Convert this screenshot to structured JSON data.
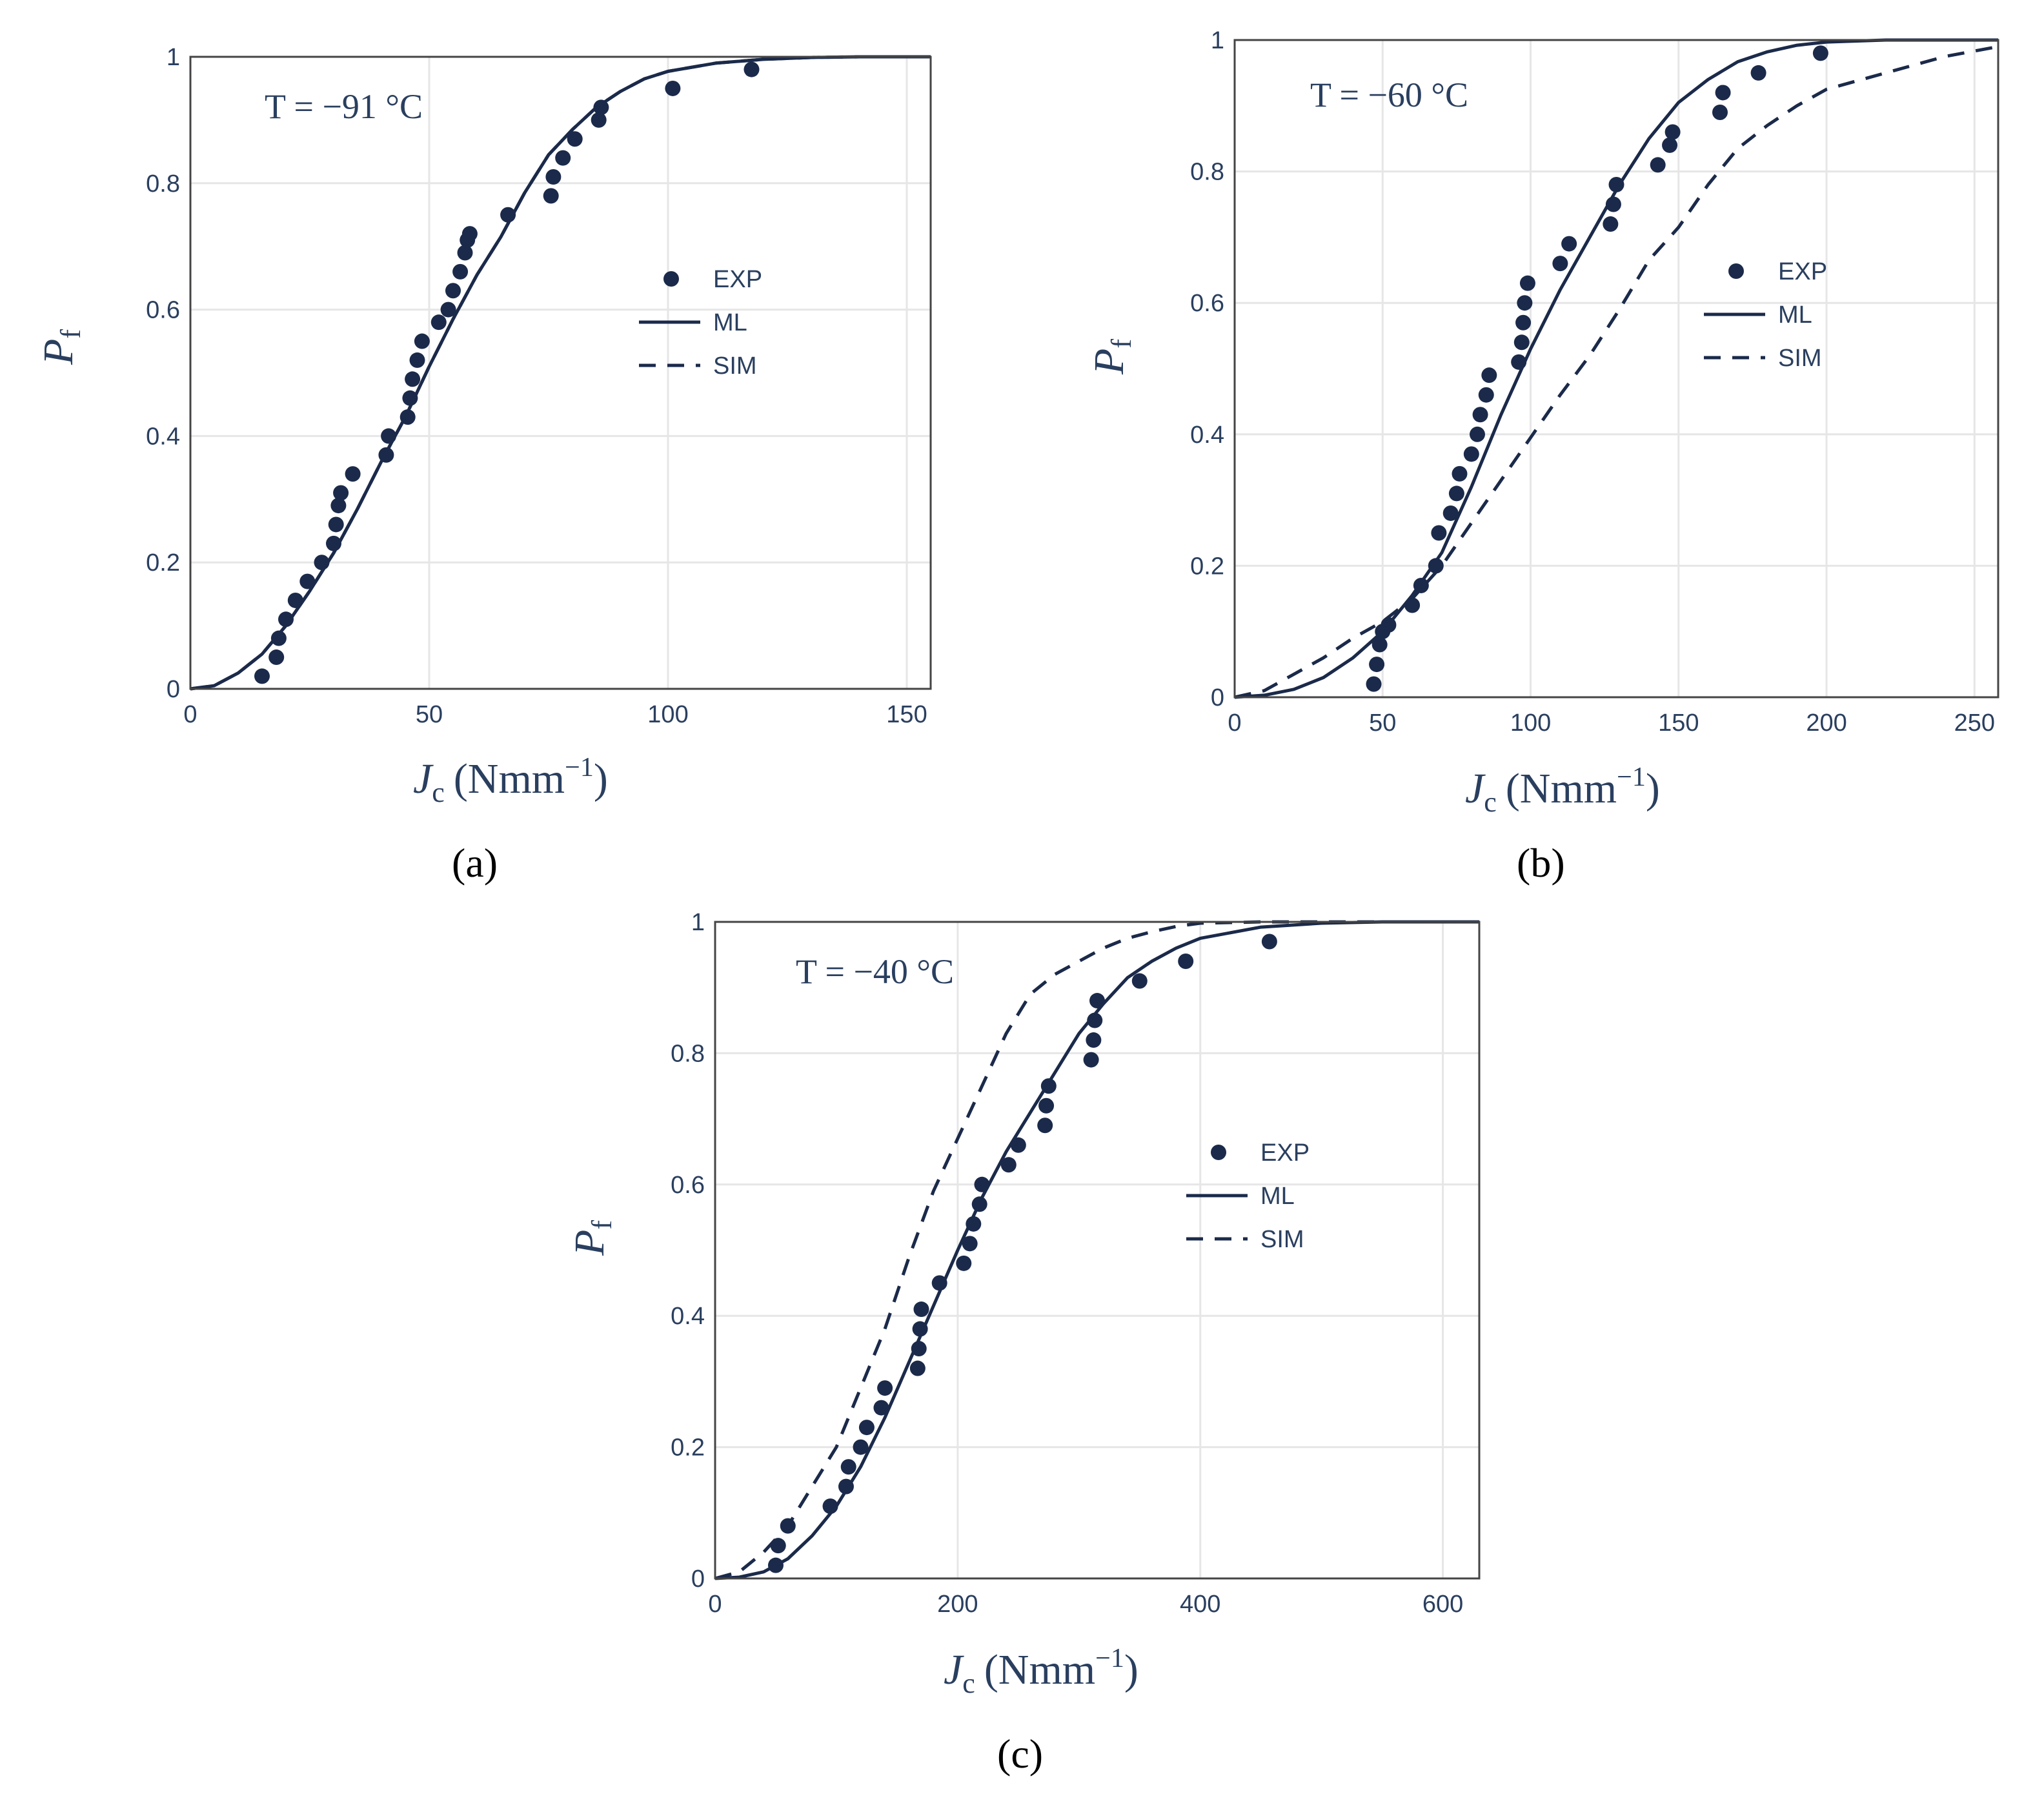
{
  "colors": {
    "series": "#1b2a4a",
    "grid": "#e6e6e6",
    "axis": "#2a3f5f",
    "frame": "#444444"
  },
  "chart_data": [
    {
      "type": "line",
      "panel": "(a)",
      "temperature_label": "T = −91 °C",
      "xlabel": "J",
      "xlabel_sub": "c",
      "xlabel_unit": "(Nmm",
      "xlabel_sup": "−1",
      "xlabel_close": ")",
      "ylabel": "P",
      "ylabel_sub": "f",
      "xlim": [
        0,
        155
      ],
      "ylim": [
        0,
        1
      ],
      "xticks": [
        0,
        50,
        100,
        150
      ],
      "xtick_labels": [
        "0",
        "50",
        "100",
        "150"
      ],
      "yticks": [
        0,
        0.2,
        0.4,
        0.6,
        0.8,
        1
      ],
      "ytick_labels": [
        "0",
        "0.2",
        "0.4",
        "0.6",
        "0.8",
        "1"
      ],
      "legend": [
        "EXP",
        "ML",
        "SIM"
      ],
      "series": [
        {
          "name": "EXP",
          "kind": "scatter",
          "x": [
            15,
            18,
            18.5,
            20,
            22,
            24.5,
            27.5,
            30,
            30.5,
            31,
            31.5,
            34,
            41,
            41.5,
            45.5,
            46,
            46.5,
            47.5,
            48.5,
            52,
            54,
            55,
            56.5,
            57.5,
            58,
            58.5,
            66.5,
            75.5,
            76,
            78,
            80.5,
            85.5,
            86,
            101,
            117.5
          ],
          "y": [
            0.02,
            0.05,
            0.08,
            0.11,
            0.14,
            0.17,
            0.2,
            0.23,
            0.26,
            0.29,
            0.31,
            0.34,
            0.37,
            0.4,
            0.43,
            0.46,
            0.49,
            0.52,
            0.55,
            0.58,
            0.6,
            0.63,
            0.66,
            0.69,
            0.71,
            0.72,
            0.75,
            0.78,
            0.81,
            0.84,
            0.87,
            0.9,
            0.92,
            0.95,
            0.98
          ]
        },
        {
          "name": "ML",
          "kind": "line",
          "x": [
            0,
            5,
            10,
            15,
            20,
            25,
            30,
            35,
            40,
            45,
            50,
            55,
            60,
            65,
            70,
            75,
            80,
            85,
            90,
            95,
            100,
            110,
            120,
            130,
            140,
            155
          ],
          "y": [
            0,
            0.005,
            0.025,
            0.055,
            0.1,
            0.155,
            0.215,
            0.285,
            0.36,
            0.43,
            0.51,
            0.585,
            0.655,
            0.715,
            0.785,
            0.845,
            0.885,
            0.92,
            0.945,
            0.965,
            0.977,
            0.99,
            0.996,
            0.999,
            1,
            1
          ]
        },
        {
          "name": "SIM",
          "kind": "dashed",
          "x": [
            0,
            5,
            10,
            15,
            20,
            25,
            30,
            35,
            40,
            45,
            50,
            55,
            60,
            65,
            70,
            75,
            80,
            85,
            90,
            95,
            100,
            110,
            120,
            130,
            140,
            155
          ],
          "y": [
            0,
            0.005,
            0.025,
            0.055,
            0.1,
            0.155,
            0.215,
            0.285,
            0.36,
            0.43,
            0.51,
            0.585,
            0.655,
            0.715,
            0.785,
            0.845,
            0.885,
            0.92,
            0.945,
            0.965,
            0.977,
            0.99,
            0.996,
            0.999,
            1,
            1
          ]
        }
      ]
    },
    {
      "type": "line",
      "panel": "(b)",
      "temperature_label": "T = −60 °C",
      "xlabel": "J",
      "xlabel_sub": "c",
      "xlabel_unit": "(Nmm",
      "xlabel_sup": "−1",
      "xlabel_close": ")",
      "ylabel": "P",
      "ylabel_sub": "f",
      "xlim": [
        0,
        258
      ],
      "ylim": [
        0,
        1
      ],
      "xticks": [
        0,
        50,
        100,
        150,
        200,
        250
      ],
      "xtick_labels": [
        "0",
        "50",
        "100",
        "150",
        "200",
        "250"
      ],
      "yticks": [
        0,
        0.2,
        0.4,
        0.6,
        0.8,
        1
      ],
      "ytick_labels": [
        "0",
        "0.2",
        "0.4",
        "0.6",
        "0.8",
        "1"
      ],
      "legend": [
        "EXP",
        "ML",
        "SIM"
      ],
      "series": [
        {
          "name": "EXP",
          "kind": "scatter",
          "x": [
            47,
            48,
            49,
            50,
            52,
            60,
            63,
            68,
            69,
            73,
            75,
            76,
            80,
            82,
            83,
            85,
            86,
            96,
            97,
            97.5,
            98,
            99,
            110,
            113,
            127,
            128,
            129,
            143,
            147,
            148,
            164,
            165,
            177,
            198
          ],
          "y": [
            0.02,
            0.05,
            0.08,
            0.1,
            0.11,
            0.14,
            0.17,
            0.2,
            0.25,
            0.28,
            0.31,
            0.34,
            0.37,
            0.4,
            0.43,
            0.46,
            0.49,
            0.51,
            0.54,
            0.57,
            0.6,
            0.63,
            0.66,
            0.69,
            0.72,
            0.75,
            0.78,
            0.81,
            0.84,
            0.86,
            0.89,
            0.92,
            0.95,
            0.98
          ]
        },
        {
          "name": "ML",
          "kind": "line",
          "x": [
            0,
            10,
            20,
            30,
            40,
            50,
            60,
            70,
            80,
            90,
            100,
            110,
            120,
            130,
            140,
            150,
            160,
            170,
            180,
            190,
            200,
            220,
            240,
            258
          ],
          "y": [
            0,
            0.003,
            0.012,
            0.03,
            0.06,
            0.1,
            0.155,
            0.22,
            0.32,
            0.43,
            0.53,
            0.62,
            0.7,
            0.78,
            0.85,
            0.905,
            0.94,
            0.967,
            0.982,
            0.992,
            0.997,
            1,
            1,
            1
          ]
        },
        {
          "name": "SIM",
          "kind": "dashed",
          "x": [
            0,
            10,
            20,
            30,
            40,
            50,
            60,
            70,
            80,
            90,
            100,
            110,
            120,
            130,
            140,
            150,
            160,
            170,
            180,
            190,
            200,
            220,
            240,
            258
          ],
          "y": [
            0,
            0.01,
            0.035,
            0.06,
            0.09,
            0.115,
            0.15,
            0.2,
            0.265,
            0.33,
            0.395,
            0.46,
            0.52,
            0.59,
            0.665,
            0.715,
            0.78,
            0.835,
            0.87,
            0.9,
            0.925,
            0.95,
            0.975,
            0.99
          ]
        }
      ]
    },
    {
      "type": "line",
      "panel": "(c)",
      "temperature_label": "T = −40 °C",
      "xlabel": "J",
      "xlabel_sub": "c",
      "xlabel_unit": "(Nmm",
      "xlabel_sup": "−1",
      "xlabel_close": ")",
      "ylabel": "P",
      "ylabel_sub": "f",
      "xlim": [
        0,
        630
      ],
      "ylim": [
        0,
        1
      ],
      "xticks": [
        0,
        200,
        400,
        600
      ],
      "xtick_labels": [
        "0",
        "200",
        "400",
        "600"
      ],
      "yticks": [
        0,
        0.2,
        0.4,
        0.6,
        0.8,
        1
      ],
      "ytick_labels": [
        "0",
        "0.2",
        "0.4",
        "0.6",
        "0.8",
        "1"
      ],
      "legend": [
        "EXP",
        "ML",
        "SIM"
      ],
      "series": [
        {
          "name": "EXP",
          "kind": "scatter",
          "x": [
            50,
            52,
            60,
            95,
            108,
            110,
            120,
            125,
            137,
            140,
            167,
            168,
            169,
            170,
            185,
            205,
            210,
            213,
            218,
            220,
            242,
            250,
            272,
            273,
            275,
            310,
            312,
            313,
            315,
            350,
            388,
            457
          ],
          "y": [
            0.02,
            0.05,
            0.08,
            0.11,
            0.14,
            0.17,
            0.2,
            0.23,
            0.26,
            0.29,
            0.32,
            0.35,
            0.38,
            0.41,
            0.45,
            0.48,
            0.51,
            0.54,
            0.57,
            0.6,
            0.63,
            0.66,
            0.69,
            0.72,
            0.75,
            0.79,
            0.82,
            0.85,
            0.88,
            0.91,
            0.94,
            0.97
          ]
        },
        {
          "name": "ML",
          "kind": "line",
          "x": [
            0,
            20,
            40,
            60,
            80,
            100,
            120,
            140,
            160,
            180,
            200,
            220,
            240,
            260,
            280,
            300,
            320,
            340,
            360,
            380,
            400,
            450,
            500,
            550,
            630
          ],
          "y": [
            0,
            0.002,
            0.01,
            0.03,
            0.065,
            0.11,
            0.17,
            0.245,
            0.33,
            0.415,
            0.5,
            0.58,
            0.65,
            0.71,
            0.77,
            0.83,
            0.875,
            0.915,
            0.94,
            0.96,
            0.975,
            0.992,
            0.998,
            1,
            1
          ]
        },
        {
          "name": "SIM",
          "kind": "dashed",
          "x": [
            0,
            20,
            40,
            60,
            80,
            100,
            120,
            140,
            160,
            180,
            200,
            220,
            240,
            260,
            280,
            300,
            320,
            340,
            360,
            380,
            400,
            450,
            500,
            550,
            630
          ],
          "y": [
            0,
            0.01,
            0.04,
            0.08,
            0.14,
            0.2,
            0.29,
            0.38,
            0.49,
            0.59,
            0.67,
            0.75,
            0.83,
            0.89,
            0.92,
            0.94,
            0.96,
            0.975,
            0.985,
            0.993,
            0.998,
            1,
            1,
            1,
            1
          ]
        }
      ]
    }
  ]
}
